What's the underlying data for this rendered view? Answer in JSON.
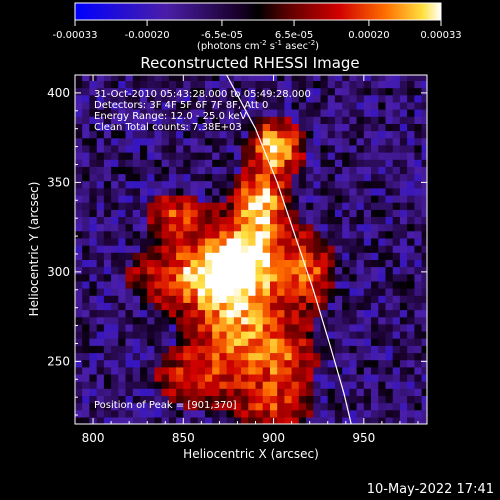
{
  "chart_data": {
    "type": "heatmap",
    "title": "Reconstructed RHESSI Image",
    "xlabel": "Heliocentric X (arcsec)",
    "ylabel": "Heliocentric Y (arcsec)",
    "xlim": [
      790,
      985
    ],
    "ylim": [
      215,
      410
    ],
    "x_ticks": [
      800,
      850,
      900,
      950
    ],
    "y_ticks": [
      250,
      300,
      350,
      400
    ],
    "colorbar": {
      "range": [
        -0.00033,
        0.00033
      ],
      "tick_labels": [
        "-0.00033",
        "-0.00020",
        "-6.5e-05",
        "6.5e-05",
        "0.00020",
        "0.00033"
      ],
      "unit_label": "(photons cm",
      "unit_sup1": "-2",
      "unit_mid1": " s",
      "unit_sup2": "-1",
      "unit_mid2": " asec",
      "unit_sup3": "-2",
      "unit_end": ")"
    },
    "annotations": [
      "31-Oct-2010 05:43:28.000 to 05:49:28.000",
      "Detectors: 3F 4F 5F 6F 7F 8F, Att 0",
      "Energy Range: 12.0 - 25.0 keV",
      "Clean     Total counts: 7.38E+03"
    ],
    "peak_label": "Position of Peak = [901,370]",
    "peak": [
      901,
      370
    ],
    "limb_curve": [
      [
        874,
        410
      ],
      [
        890,
        380
      ],
      [
        902,
        350
      ],
      [
        912,
        320
      ],
      [
        922,
        290
      ],
      [
        931,
        260
      ],
      [
        939,
        232
      ],
      [
        943,
        215
      ]
    ],
    "sources": [
      {
        "x": 901,
        "y": 370,
        "sx": 9,
        "sy": 9,
        "amp": 1.0
      },
      {
        "x": 893,
        "y": 340,
        "sx": 9,
        "sy": 12,
        "amp": 0.85
      },
      {
        "x": 884,
        "y": 312,
        "sx": 16,
        "sy": 14,
        "amp": 0.85
      },
      {
        "x": 860,
        "y": 298,
        "sx": 24,
        "sy": 12,
        "amp": 0.7
      },
      {
        "x": 880,
        "y": 270,
        "sx": 18,
        "sy": 22,
        "amp": 0.72
      },
      {
        "x": 845,
        "y": 332,
        "sx": 10,
        "sy": 8,
        "amp": 0.55
      },
      {
        "x": 920,
        "y": 300,
        "sx": 10,
        "sy": 14,
        "amp": 0.5
      },
      {
        "x": 905,
        "y": 250,
        "sx": 12,
        "sy": 14,
        "amp": 0.45
      },
      {
        "x": 900,
        "y": 225,
        "sx": 14,
        "sy": 8,
        "amp": 0.4
      },
      {
        "x": 855,
        "y": 240,
        "sx": 14,
        "sy": 10,
        "amp": 0.45
      }
    ]
  },
  "footer_timestamp": "10-May-2022 17:41"
}
